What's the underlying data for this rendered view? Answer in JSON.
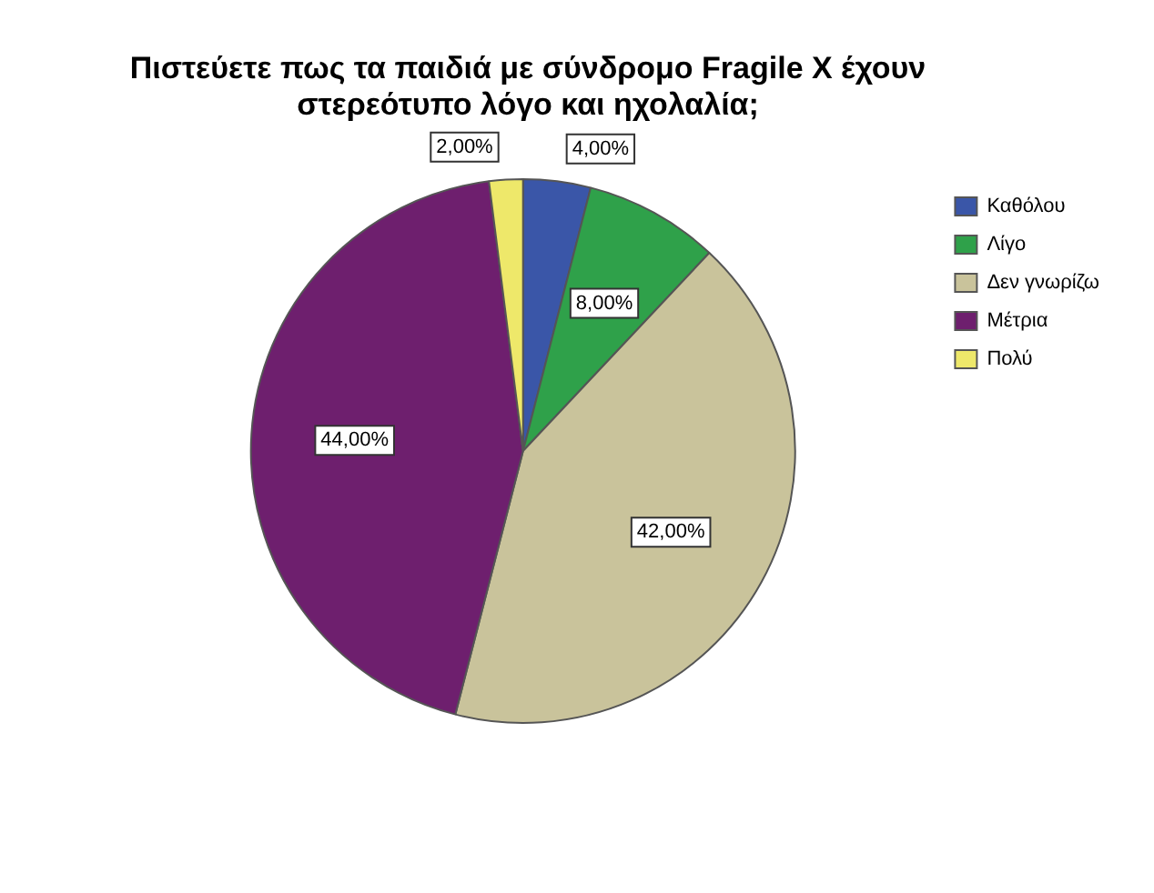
{
  "chart_data": {
    "type": "pie",
    "title": "Πιστεύετε πως τα παιδιά με σύνδρομο Fragile X έχουν στερεότυπο λόγο και ηχολαλία;",
    "categories": [
      "Καθόλου",
      "Λίγο",
      "Δεν γνωρίζω",
      "Μέτρια",
      "Πολύ"
    ],
    "values": [
      4,
      8,
      42,
      44,
      2
    ],
    "colors": [
      "#3a56a8",
      "#2fa14a",
      "#c9c39b",
      "#6e1f6e",
      "#eee86a"
    ],
    "value_labels": [
      "4,00%",
      "8,00%",
      "42,00%",
      "44,00%",
      "2,00%"
    ],
    "legend": "top right"
  }
}
